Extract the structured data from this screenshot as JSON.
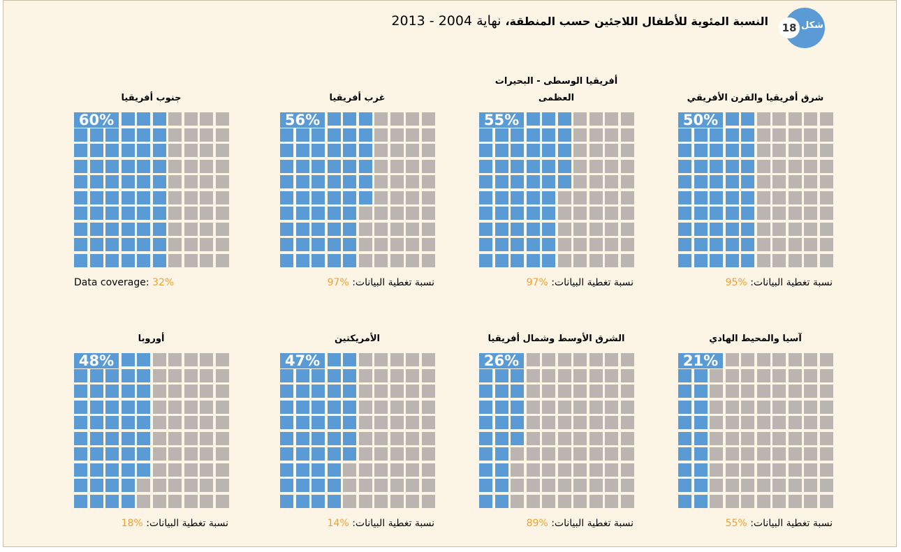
{
  "figure_label": "شكل",
  "figure_number": "18",
  "title_bold": "النسبة المئوية للأطفال اللاجئين حسب المنطقة،",
  "title_rest": "نهاية 2004 - 2013",
  "chart_data": [
    {
      "type": "waffle",
      "title": "شرق أفريقيا والقرن الأفريقي",
      "value": 50,
      "value_label": "50%",
      "coverage_text": "نسبة تغطية البيانات:",
      "coverage": "95%",
      "color": "#5b9bd5"
    },
    {
      "type": "waffle",
      "title": "أفريقيا الوسطى - البحيرات العظمى",
      "value": 55,
      "value_label": "55%",
      "coverage_text": "نسبة تغطية البيانات:",
      "coverage": "97%",
      "color": "#5b9bd5"
    },
    {
      "type": "waffle",
      "title": "غرب أفريقيا",
      "value": 56,
      "value_label": "56%",
      "coverage_text": "نسبة تغطية البيانات:",
      "coverage": "97%",
      "color": "#5b9bd5"
    },
    {
      "type": "waffle",
      "title": "جنوب أفريقيا",
      "value": 60,
      "value_label": "60%",
      "coverage_text": "Data coverage:",
      "coverage": "32%",
      "color": "#5b9bd5"
    },
    {
      "type": "waffle",
      "title": "آسيا والمحيط الهادي",
      "value": 21,
      "value_label": "21%",
      "coverage_text": "نسبة تغطية البيانات:",
      "coverage": "55%",
      "color": "#5b9bd5"
    },
    {
      "type": "waffle",
      "title": "الشرق الأوسط وشمال أفريقيا",
      "value": 26,
      "value_label": "26%",
      "coverage_text": "نسبة تغطية البيانات:",
      "coverage": "89%",
      "color": "#5b9bd5"
    },
    {
      "type": "waffle",
      "title": "الأمريكتين",
      "value": 47,
      "value_label": "47%",
      "coverage_text": "نسبة تغطية البيانات:",
      "coverage": "14%",
      "color": "#5b9bd5"
    },
    {
      "type": "waffle",
      "title": "أوروبا",
      "value": 48,
      "value_label": "48%",
      "coverage_text": "نسبة تغطية البيانات:",
      "coverage": "18%",
      "color": "#5b9bd5"
    }
  ]
}
